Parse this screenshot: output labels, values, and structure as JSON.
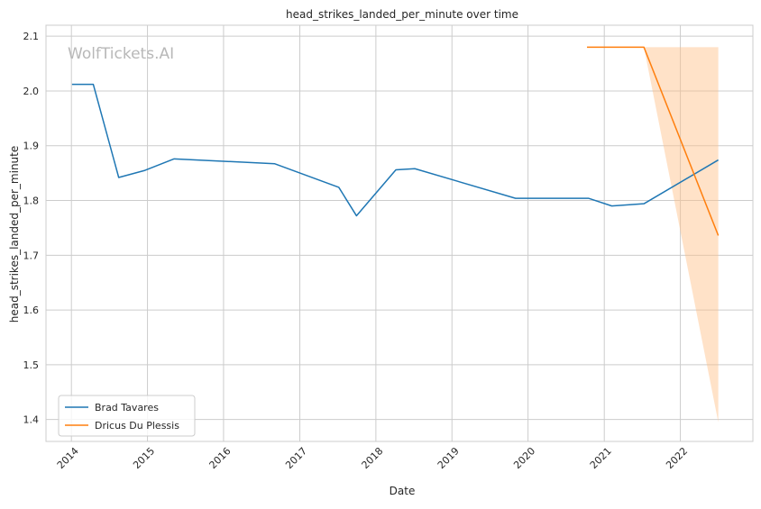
{
  "chart_data": {
    "type": "line",
    "title": "head_strikes_landed_per_minute over time",
    "xlabel": "Date",
    "ylabel": "head_strikes_landed_per_minute",
    "watermark": "WolfTickets.AI",
    "x_ticks": [
      "2014",
      "2015",
      "2016",
      "2017",
      "2018",
      "2019",
      "2020",
      "2021",
      "2022"
    ],
    "y_ticks": [
      "1.4",
      "1.5",
      "1.6",
      "1.7",
      "1.8",
      "1.9",
      "2.0",
      "2.1"
    ],
    "xlim": [
      "2013-09-01",
      "2022-12-15"
    ],
    "ylim": [
      1.36,
      2.12
    ],
    "grid": true,
    "legend_position": "lower-left",
    "series": [
      {
        "name": "Brad Tavares",
        "color": "#1f77b4",
        "points": [
          {
            "x": "2014-01-04",
            "y": 2.012
          },
          {
            "x": "2014-04-16",
            "y": 2.012
          },
          {
            "x": "2014-08-16",
            "y": 1.842
          },
          {
            "x": "2014-12-20",
            "y": 1.855
          },
          {
            "x": "2015-05-09",
            "y": 1.876
          },
          {
            "x": "2016-09-03",
            "y": 1.867
          },
          {
            "x": "2017-07-07",
            "y": 1.824
          },
          {
            "x": "2017-09-30",
            "y": 1.772
          },
          {
            "x": "2018-04-07",
            "y": 1.856
          },
          {
            "x": "2018-07-07",
            "y": 1.858
          },
          {
            "x": "2019-11-02",
            "y": 1.804
          },
          {
            "x": "2020-10-17",
            "y": 1.804
          },
          {
            "x": "2021-02-06",
            "y": 1.79
          },
          {
            "x": "2021-07-10",
            "y": 1.794
          },
          {
            "x": "2022-07-02",
            "y": 1.874
          }
        ]
      },
      {
        "name": "Dricus Du Plessis",
        "color": "#ff7f0e",
        "points": [
          {
            "x": "2020-10-10",
            "y": 2.08
          },
          {
            "x": "2021-07-10",
            "y": 2.08
          },
          {
            "x": "2022-07-02",
            "y": 1.736
          }
        ],
        "band": {
          "color": "#ffbe86",
          "opacity": 0.45,
          "points": [
            {
              "x": "2021-07-10",
              "low": 2.08,
              "high": 2.08
            },
            {
              "x": "2022-07-02",
              "low": 1.395,
              "high": 2.08
            }
          ]
        }
      }
    ]
  }
}
